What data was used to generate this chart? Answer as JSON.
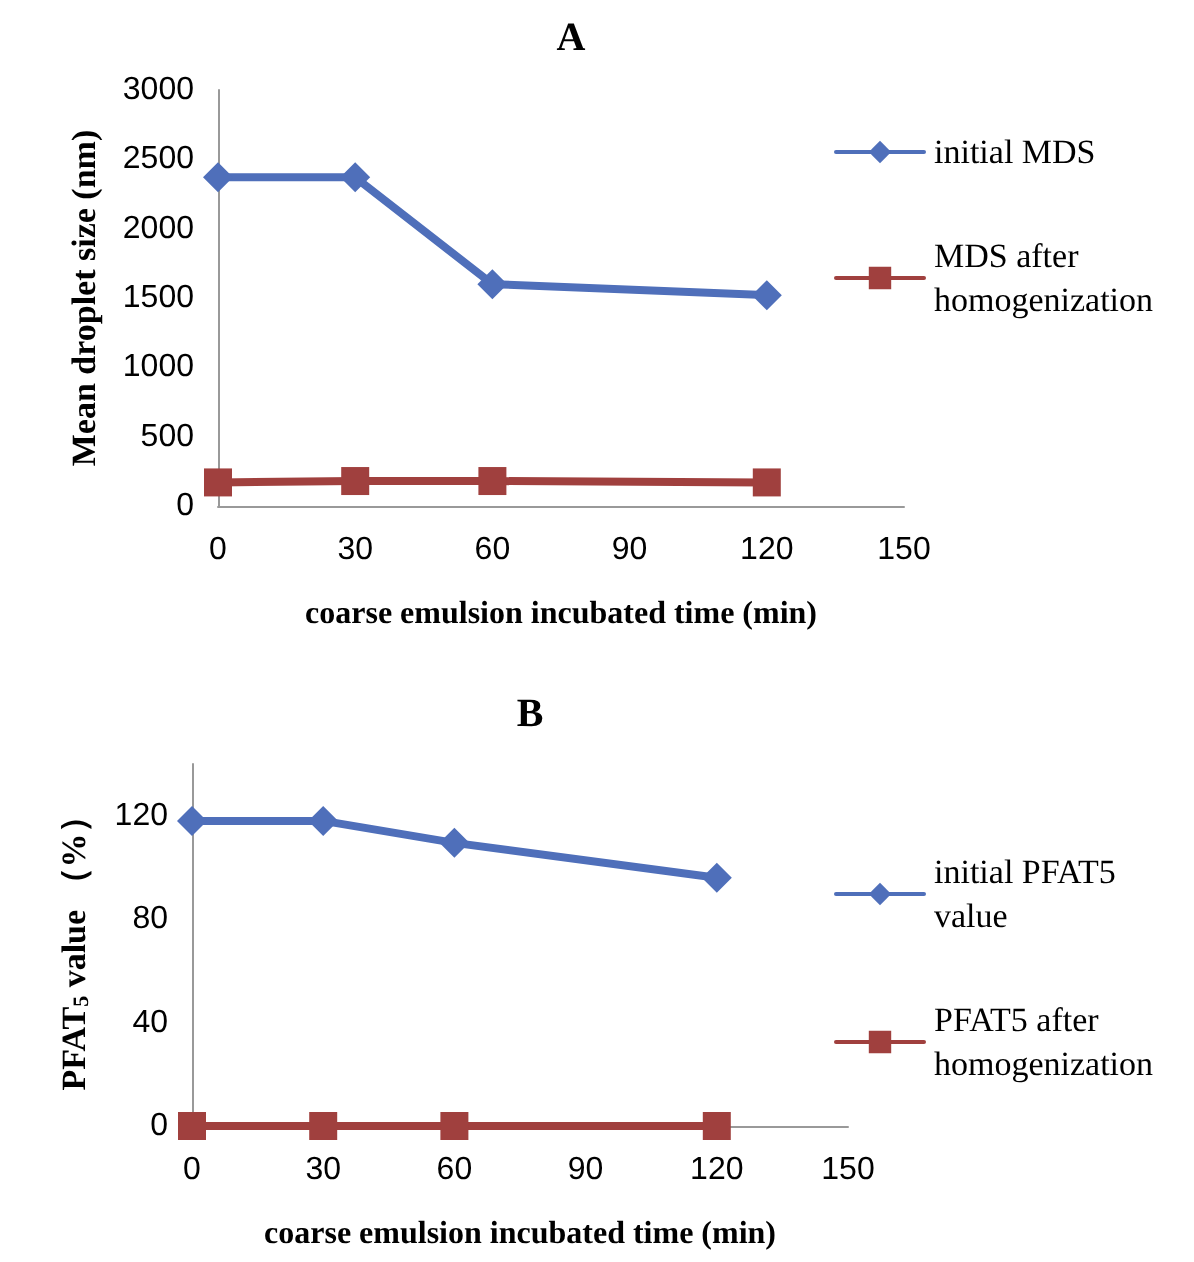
{
  "chart_data": [
    {
      "type": "line",
      "title": "A",
      "xlabel": "coarse emulsion incubated time (min)",
      "ylabel": "Mean droplet size (nm)",
      "x": [
        0,
        30,
        60,
        120
      ],
      "xlim": [
        0,
        150
      ],
      "xticks": [
        0,
        30,
        60,
        90,
        120,
        150
      ],
      "ylim": [
        0,
        3000
      ],
      "yticks": [
        0,
        500,
        1000,
        1500,
        2000,
        2500,
        3000
      ],
      "grid": false,
      "legend": "right",
      "series": [
        {
          "name": "initial MDS",
          "color": "#4f6fba",
          "marker": "diamond",
          "values": [
            2370,
            2370,
            1600,
            1520
          ]
        },
        {
          "name": "MDS after homogenization",
          "color": "#a0403e",
          "marker": "square",
          "values": [
            170,
            180,
            180,
            170
          ]
        }
      ]
    },
    {
      "type": "line",
      "title": "B",
      "xlabel": "coarse emulsion incubated time (min)",
      "ylabel": "PFAT$_{5}$ value （%）",
      "x": [
        0,
        30,
        60,
        120
      ],
      "xlim": [
        0,
        150
      ],
      "xticks": [
        0,
        30,
        60,
        90,
        120,
        150
      ],
      "ylim": [
        0,
        140
      ],
      "yticks": [
        0,
        40,
        80,
        120
      ],
      "grid": false,
      "legend": "right",
      "series": [
        {
          "name": "initial PFAT5 value",
          "color": "#4f6fba",
          "marker": "diamond",
          "values": [
            118,
            118,
            109.5,
            96
          ]
        },
        {
          "name": "PFAT5 after homogenization",
          "color": "#a0403e",
          "marker": "square",
          "values": [
            0,
            0,
            0,
            0
          ]
        }
      ]
    }
  ]
}
